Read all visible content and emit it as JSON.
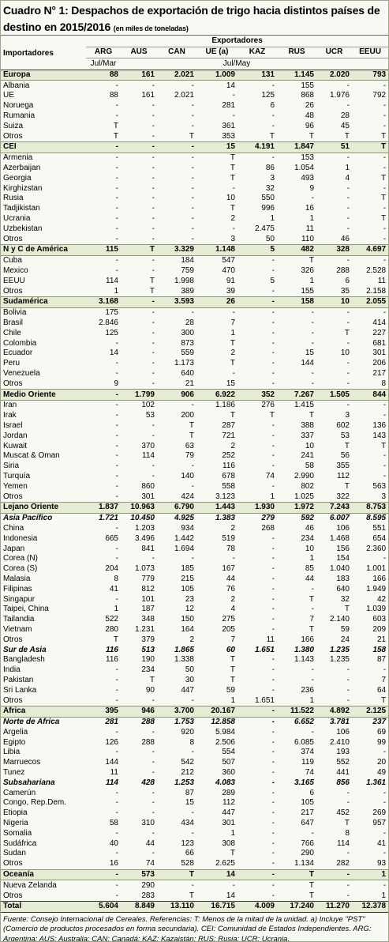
{
  "title": "Cuadro N° 1: Despachos de exportación de trigo hacia distintos países de destino en 2015/2016",
  "subtitle": "(en miles de toneladas)",
  "table": {
    "row_header": "Importadores",
    "group_header": "Exportadores",
    "columns": [
      "ARG",
      "AUS",
      "CAN",
      "UE (a)",
      "KAZ",
      "RUS",
      "UCR",
      "EEUU"
    ],
    "periods": [
      "Jul/Mar",
      "Jul/May"
    ],
    "rows": [
      [
        "Europa",
        "88",
        "161",
        "2.021",
        "1.009",
        "131",
        "1.145",
        "2.020",
        "793"
      ],
      [
        "Albania",
        "-",
        "-",
        "-",
        "14",
        "-",
        "155",
        "-",
        "-"
      ],
      [
        "UE",
        "88",
        "161",
        "2.021",
        "-",
        "125",
        "868",
        "1.976",
        "792"
      ],
      [
        "Noruega",
        "-",
        "-",
        "-",
        "281",
        "6",
        "26",
        "-",
        "-"
      ],
      [
        "Rumania",
        "-",
        "-",
        "-",
        "-",
        "-",
        "48",
        "28",
        "-"
      ],
      [
        "Suiza",
        "T",
        "-",
        "-",
        "361",
        "-",
        "96",
        "45",
        "-"
      ],
      [
        "Otros",
        "T",
        "-",
        "T",
        "353",
        "T",
        "T",
        "T",
        "T"
      ],
      [
        "CEI",
        "-",
        "-",
        "-",
        "15",
        "4.191",
        "1.847",
        "51",
        "T"
      ],
      [
        "Armenia",
        "-",
        "-",
        "-",
        "T",
        "-",
        "153",
        "-",
        "-"
      ],
      [
        "Azerbaijan",
        "-",
        "-",
        "-",
        "T",
        "86",
        "1.054",
        "1",
        "-"
      ],
      [
        "Georgia",
        "-",
        "-",
        "-",
        "T",
        "3",
        "493",
        "4",
        "T"
      ],
      [
        "Kirghizstan",
        "-",
        "-",
        "-",
        "-",
        "32",
        "9",
        "-",
        "-"
      ],
      [
        "Rusia",
        "-",
        "-",
        "-",
        "10",
        "550",
        "-",
        "-",
        "T"
      ],
      [
        "Tadjikistan",
        "-",
        "-",
        "-",
        "T",
        "996",
        "16",
        "-",
        "-"
      ],
      [
        "Ucrania",
        "-",
        "-",
        "-",
        "2",
        "1",
        "1",
        "-",
        "T"
      ],
      [
        "Uzbekistan",
        "-",
        "-",
        "-",
        "-",
        "2.475",
        "11",
        "-",
        "-"
      ],
      [
        "Otros",
        "-",
        "-",
        "-",
        "3",
        "50",
        "110",
        "46",
        "-"
      ],
      [
        "N y C de América",
        "115",
        "T",
        "3.329",
        "1.148",
        "5",
        "482",
        "328",
        "4.697"
      ],
      [
        "Cuba",
        "-",
        "-",
        "184",
        "547",
        "-",
        "T",
        "-",
        "-"
      ],
      [
        "Mexico",
        "-",
        "-",
        "759",
        "470",
        "-",
        "326",
        "288",
        "2.528"
      ],
      [
        "EEUU",
        "114",
        "T",
        "1.998",
        "91",
        "5",
        "1",
        "6",
        "11"
      ],
      [
        "Otros",
        "1",
        "T",
        "389",
        "39",
        "-",
        "155",
        "35",
        "2.158"
      ],
      [
        "Sudamérica",
        "3.168",
        "-",
        "3.593",
        "26",
        "-",
        "158",
        "10",
        "2.055"
      ],
      [
        "Bolivia",
        "175",
        "-",
        "-",
        "-",
        "-",
        "-",
        "-",
        "-"
      ],
      [
        "Brasil",
        "2.846",
        "-",
        "28",
        "7",
        "-",
        "-",
        "-",
        "414"
      ],
      [
        "Chile",
        "125",
        "-",
        "300",
        "1",
        "-",
        "-",
        "T",
        "227"
      ],
      [
        "Colombia",
        "-",
        "-",
        "873",
        "T",
        "-",
        "-",
        "-",
        "681"
      ],
      [
        "Ecuador",
        "14",
        "-",
        "559",
        "2",
        "-",
        "15",
        "10",
        "301"
      ],
      [
        "Peru",
        "-",
        "-",
        "1.173",
        "T",
        "-",
        "144",
        "-",
        "206"
      ],
      [
        "Venezuela",
        "-",
        "-",
        "640",
        "-",
        "-",
        "-",
        "-",
        "217"
      ],
      [
        "Otros",
        "9",
        "-",
        "21",
        "15",
        "-",
        "-",
        "-",
        "8"
      ],
      [
        "Medio Oriente",
        "-",
        "1.799",
        "906",
        "6.922",
        "352",
        "7.267",
        "1.505",
        "844"
      ],
      [
        "Iran",
        "-",
        "102",
        "-",
        "1.186",
        "276",
        "1.415",
        "-",
        "-"
      ],
      [
        "Irak",
        "-",
        "53",
        "200",
        "T",
        "T",
        "T",
        "3",
        "-"
      ],
      [
        "Israel",
        "-",
        "-",
        "T",
        "287",
        "-",
        "388",
        "602",
        "136"
      ],
      [
        "Jordan",
        "-",
        "-",
        "T",
        "721",
        "-",
        "337",
        "53",
        "143"
      ],
      [
        "Kuwait",
        "-",
        "370",
        "63",
        "2",
        "-",
        "10",
        "T",
        "T"
      ],
      [
        "Muscat & Oman",
        "-",
        "114",
        "79",
        "252",
        "-",
        "241",
        "56",
        "-"
      ],
      [
        "Siria",
        "-",
        "-",
        "-",
        "116",
        "-",
        "58",
        "355",
        "-"
      ],
      [
        "Turquía",
        "-",
        "-",
        "140",
        "678",
        "74",
        "2.990",
        "112",
        "-"
      ],
      [
        "Yemen",
        "-",
        "860",
        "-",
        "558",
        "-",
        "802",
        "T",
        "563"
      ],
      [
        "Otros",
        "-",
        "301",
        "424",
        "3.123",
        "1",
        "1.025",
        "322",
        "3"
      ],
      [
        "Lejano Oriente",
        "1.837",
        "10.963",
        "6.790",
        "1.443",
        "1.930",
        "1.972",
        "7.243",
        "8.753"
      ],
      [
        "Asia Pacífico",
        "1.721",
        "10.450",
        "4.925",
        "1.383",
        "279",
        "592",
        "6.007",
        "8.595"
      ],
      [
        "China",
        "-",
        "1.203",
        "934",
        "2",
        "268",
        "46",
        "106",
        "551"
      ],
      [
        " Indonesia",
        "665",
        "3.496",
        "1.442",
        "519",
        "-",
        "234",
        "1.468",
        "654"
      ],
      [
        "Japan",
        "-",
        "841",
        "1.694",
        "78",
        "-",
        "10",
        "156",
        "2.360"
      ],
      [
        "Corea (N)",
        "-",
        "-",
        "-",
        "-",
        "-",
        "1",
        "154",
        "-"
      ],
      [
        "Corea (S)",
        "204",
        "1.073",
        "185",
        "167",
        "-",
        "85",
        "1.040",
        "1.001"
      ],
      [
        "Malasia",
        "8",
        "779",
        "215",
        "44",
        "-",
        "44",
        "183",
        "166"
      ],
      [
        "Filipinas",
        "41",
        "812",
        "105",
        "76",
        "-",
        "-",
        "640",
        "1.949"
      ],
      [
        "Singapur",
        "-",
        "101",
        "23",
        "2",
        "-",
        "T",
        "32",
        "42"
      ],
      [
        "Taipei, China",
        "1",
        "187",
        "12",
        "4",
        "-",
        "-",
        "T",
        "1.039"
      ],
      [
        "Tailandia",
        "522",
        "348",
        "150",
        "275",
        "-",
        "7",
        "2.140",
        "603"
      ],
      [
        "Vietnam",
        "280",
        "1.231",
        "164",
        "205",
        "-",
        "T",
        "59",
        "209"
      ],
      [
        "Otros",
        "T",
        "379",
        "2",
        "7",
        "11",
        "166",
        "24",
        "21"
      ],
      [
        "Sur de Asia",
        "116",
        "513",
        "1.865",
        "60",
        "1.651",
        "1.380",
        "1.235",
        "158"
      ],
      [
        "Bangladesh",
        "116",
        "190",
        "1.338",
        "T",
        "-",
        "1.143",
        "1.235",
        "87"
      ],
      [
        "India",
        "-",
        "234",
        "50",
        "T",
        "-",
        "-",
        "-",
        "-"
      ],
      [
        "Pakistan",
        "-",
        "T",
        "30",
        "T",
        "-",
        "-",
        "-",
        "7"
      ],
      [
        "Sri Lanka",
        "-",
        "90",
        "447",
        "59",
        "-",
        "236",
        "-",
        "64"
      ],
      [
        "Otros",
        "-",
        "-",
        "-",
        "1",
        "1.651",
        "1",
        "-",
        "T"
      ],
      [
        "África",
        "395",
        "946",
        "3.700",
        "20.167",
        "-",
        "11.522",
        "4.892",
        "2.125"
      ],
      [
        "Norte de Africa",
        "281",
        "288",
        "1.753",
        "12.858",
        "-",
        "6.652",
        "3.781",
        "237"
      ],
      [
        "Argelia",
        "-",
        "-",
        "920",
        "5.984",
        "-",
        "-",
        "106",
        "69"
      ],
      [
        "Egipto",
        "126",
        "288",
        "8",
        "2.506",
        "-",
        "6.085",
        "2.410",
        "99"
      ],
      [
        "Libia",
        "-",
        "-",
        "-",
        "554",
        "-",
        "374",
        "193",
        "-"
      ],
      [
        "Marruecos",
        "144",
        "-",
        "542",
        "507",
        "-",
        "119",
        "552",
        "20"
      ],
      [
        "Tunez",
        "11",
        "-",
        "212",
        "360",
        "-",
        "74",
        "441",
        "49"
      ],
      [
        "Subsahariana",
        "114",
        "428",
        "1.253",
        "4.083",
        "-",
        "3.165",
        "856",
        "1.361"
      ],
      [
        "Camerún",
        "-",
        "-",
        "87",
        "289",
        "-",
        "6",
        "-",
        "-"
      ],
      [
        "Congo, Rep.Dem.",
        "-",
        "-",
        "15",
        "112",
        "-",
        "105",
        "-",
        "-"
      ],
      [
        "Etiopia",
        "-",
        "-",
        "-",
        "447",
        "-",
        "217",
        "452",
        "269"
      ],
      [
        "Nigeria",
        "58",
        "310",
        "434",
        "301",
        "-",
        "647",
        "T",
        "957"
      ],
      [
        "Somalia",
        "-",
        "-",
        "-",
        "1",
        "-",
        "-",
        "8",
        "-"
      ],
      [
        "Sudáfrica",
        "40",
        "44",
        "123",
        "308",
        "-",
        "766",
        "114",
        "41"
      ],
      [
        "Sudan",
        "-",
        "-",
        "66",
        "T",
        "-",
        "290",
        "-",
        "-"
      ],
      [
        "Otros",
        "16",
        "74",
        "528",
        "2.625",
        "-",
        "1.134",
        "282",
        "93"
      ],
      [
        "Oceanía",
        "-",
        "573",
        "T",
        "14",
        "-",
        "T",
        "-",
        "1"
      ],
      [
        "Nueva Zelanda",
        "-",
        "290",
        "-",
        "-",
        "-",
        "T",
        "-",
        "-"
      ],
      [
        "Otros",
        "-",
        "283",
        "T",
        "14",
        "-",
        "T",
        "-",
        "1"
      ],
      [
        "Total",
        "5.604",
        "8.849",
        "13.110",
        "16.715",
        "4.009",
        "17.240",
        "11.270",
        "12.378"
      ]
    ]
  },
  "footnote": "Fuente: Consejo Internacional de Cereales. Referencias: T: Menos de la mitad de la unidad. a) Incluye \"PST\" (Comercio de productos procesados en forma secundaria). CEI: Comunidad de Estados Independientes. ARG: Argentina; AUS: Australia; CAN: Canadá; KAZ: Kazajstán; RUS: Rusia; UCR: Ucrania."
}
